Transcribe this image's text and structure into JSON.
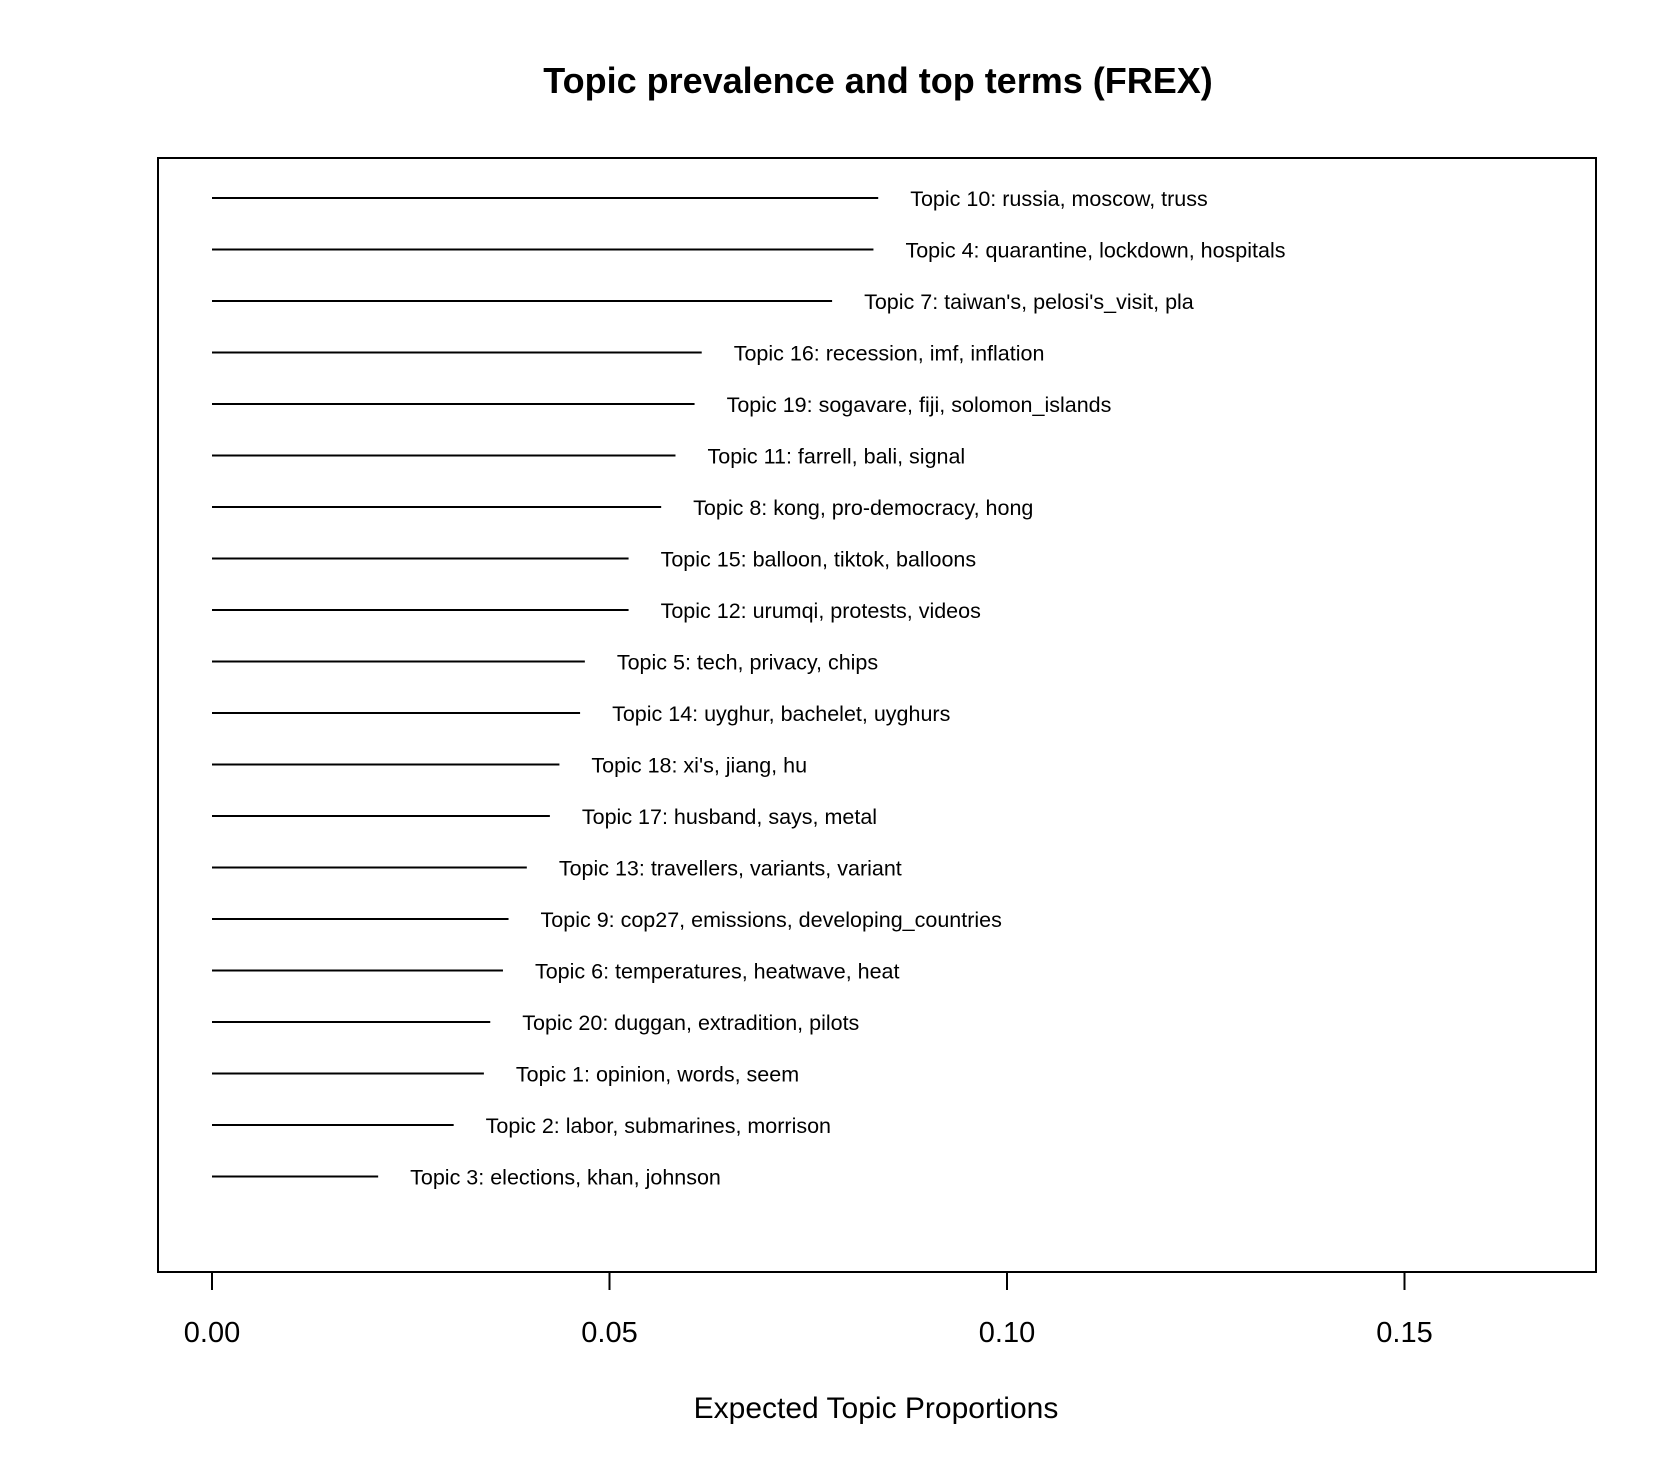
{
  "chart_data": {
    "type": "bar",
    "orientation": "horizontal",
    "title": "Topic prevalence and top terms (FREX)",
    "xlabel": "Expected Topic Proportions",
    "ylabel": "",
    "xlim": [
      0,
      0.174
    ],
    "xticks": [
      {
        "value": 0.0,
        "label": "0.00"
      },
      {
        "value": 0.05,
        "label": "0.05"
      },
      {
        "value": 0.1,
        "label": "0.10"
      },
      {
        "value": 0.15,
        "label": "0.15"
      }
    ],
    "grid": false,
    "legend": "none",
    "bars": [
      {
        "label": "Topic 10: russia, moscow, truss",
        "value": 0.0838
      },
      {
        "label": "Topic 4: quarantine, lockdown, hospitals",
        "value": 0.0832
      },
      {
        "label": "Topic 7: taiwan's, pelosi's_visit, pla",
        "value": 0.078
      },
      {
        "label": "Topic 16: recession, imf, inflation",
        "value": 0.0616
      },
      {
        "label": "Topic 19: sogavare, fiji, solomon_islands",
        "value": 0.0607
      },
      {
        "label": "Topic 11: farrell, bali, signal",
        "value": 0.0583
      },
      {
        "label": "Topic 8: kong, pro-democracy, hong",
        "value": 0.0565
      },
      {
        "label": "Topic 15: balloon, tiktok, balloons",
        "value": 0.0524
      },
      {
        "label": "Topic 12: urumqi, protests, videos",
        "value": 0.0524
      },
      {
        "label": "Topic 5: tech, privacy, chips",
        "value": 0.0469
      },
      {
        "label": "Topic 14: uyghur, bachelet, uyghurs",
        "value": 0.0463
      },
      {
        "label": "Topic 18: xi's, jiang, hu",
        "value": 0.0437
      },
      {
        "label": "Topic 17: husband, says, metal",
        "value": 0.0425
      },
      {
        "label": "Topic 13: travellers, variants, variant",
        "value": 0.0396
      },
      {
        "label": "Topic 9: cop27, emissions, developing_countries",
        "value": 0.0373
      },
      {
        "label": "Topic 6: temperatures, heatwave, heat",
        "value": 0.0366
      },
      {
        "label": "Topic 20: duggan, extradition, pilots",
        "value": 0.035
      },
      {
        "label": "Topic 1: opinion, words, seem",
        "value": 0.0342
      },
      {
        "label": "Topic 2: labor, submarines, morrison",
        "value": 0.0304
      },
      {
        "label": "Topic 3: elections, khan, johnson",
        "value": 0.0209
      }
    ]
  }
}
